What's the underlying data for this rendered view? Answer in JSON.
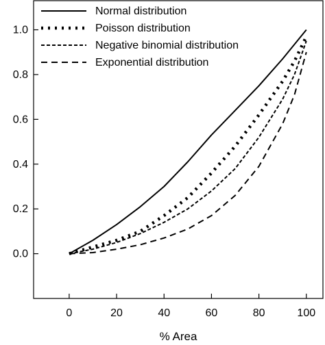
{
  "chart_data": {
    "type": "line",
    "title": "",
    "xlabel": "% Area",
    "ylabel": "",
    "xlim": [
      -15,
      107
    ],
    "ylim": [
      -0.2,
      1.13
    ],
    "x_ticks": [
      0,
      20,
      40,
      60,
      80,
      100
    ],
    "y_ticks": [
      0.0,
      0.2,
      0.4,
      0.6,
      0.8,
      1.0
    ],
    "x_tick_labels": [
      "0",
      "20",
      "40",
      "60",
      "80",
      "100"
    ],
    "y_tick_labels": [
      "0.0",
      "0.2",
      "0.4",
      "0.6",
      "0.8",
      "1.0"
    ],
    "grid": false,
    "legend_position": "top-left",
    "series": [
      {
        "name": "Normal distribution",
        "style": "solid",
        "color": "#000000",
        "x": [
          0,
          10,
          20,
          30,
          40,
          50,
          60,
          70,
          80,
          90,
          100
        ],
        "y": [
          0.0,
          0.06,
          0.13,
          0.21,
          0.3,
          0.41,
          0.53,
          0.64,
          0.75,
          0.87,
          1.0
        ]
      },
      {
        "name": "Poisson distribution",
        "style": "dotted",
        "color": "#000000",
        "x": [
          0,
          10,
          20,
          30,
          40,
          50,
          60,
          70,
          80,
          90,
          95,
          100
        ],
        "y": [
          0.0,
          0.03,
          0.06,
          0.1,
          0.17,
          0.25,
          0.36,
          0.48,
          0.62,
          0.77,
          0.86,
          0.97
        ]
      },
      {
        "name": "Negative binomial distribution",
        "style": "short-dash",
        "color": "#000000",
        "x": [
          0,
          10,
          20,
          30,
          40,
          50,
          60,
          70,
          80,
          90,
          95,
          100
        ],
        "y": [
          0.0,
          0.02,
          0.05,
          0.09,
          0.14,
          0.2,
          0.28,
          0.38,
          0.52,
          0.69,
          0.8,
          0.95
        ]
      },
      {
        "name": "Exponential distribution",
        "style": "long-dash",
        "color": "#000000",
        "x": [
          0,
          10,
          20,
          30,
          40,
          50,
          60,
          70,
          80,
          90,
          95,
          100
        ],
        "y": [
          0.0,
          0.005,
          0.02,
          0.04,
          0.07,
          0.11,
          0.17,
          0.26,
          0.39,
          0.58,
          0.71,
          0.9
        ]
      }
    ]
  }
}
